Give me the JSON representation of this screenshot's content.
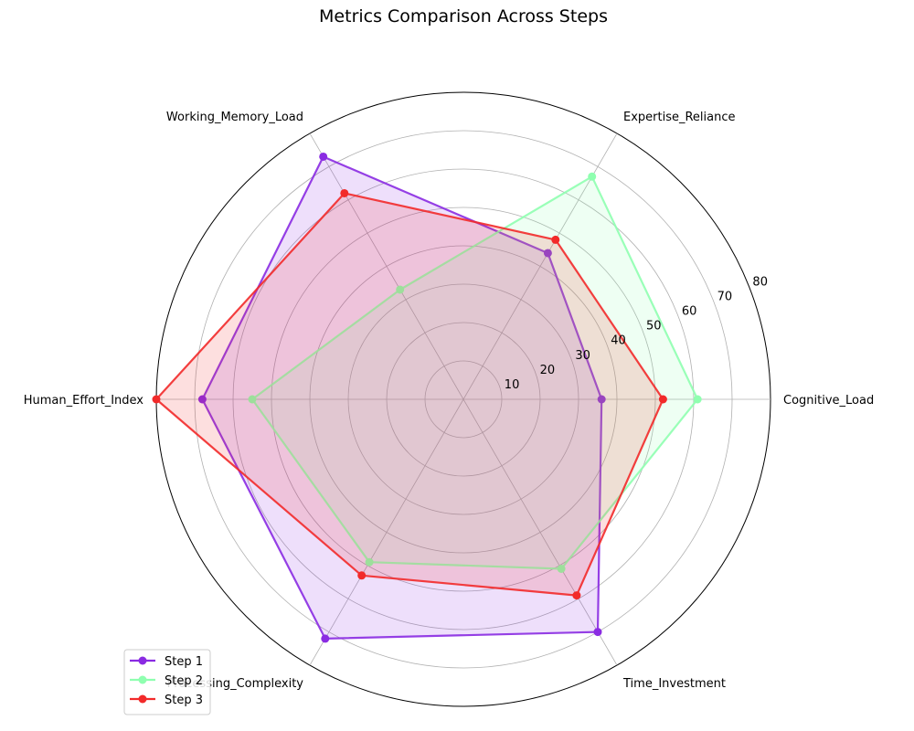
{
  "chart_data": {
    "type": "radar",
    "title": "Metrics Comparison Across Steps",
    "axes": [
      "Cognitive_Load",
      "Expertise_Reliance",
      "Working_Memory_Load",
      "Human_Effort_Index",
      "Processing_Complexity",
      "Time_Investment"
    ],
    "radial_ticks": [
      10,
      20,
      30,
      40,
      50,
      60,
      70,
      80
    ],
    "rlim": [
      0,
      80
    ],
    "grid": true,
    "legend_position": "lower-left",
    "series": [
      {
        "name": "Step 1",
        "color": "#8a2be2",
        "values": [
          36,
          44,
          73,
          68,
          72,
          70
        ]
      },
      {
        "name": "Step 2",
        "color": "#8fffb0",
        "values": [
          61,
          67,
          33,
          55,
          49,
          51
        ]
      },
      {
        "name": "Step 3",
        "color": "#f22a2a",
        "values": [
          52,
          48,
          62,
          80,
          53,
          59
        ]
      }
    ]
  }
}
